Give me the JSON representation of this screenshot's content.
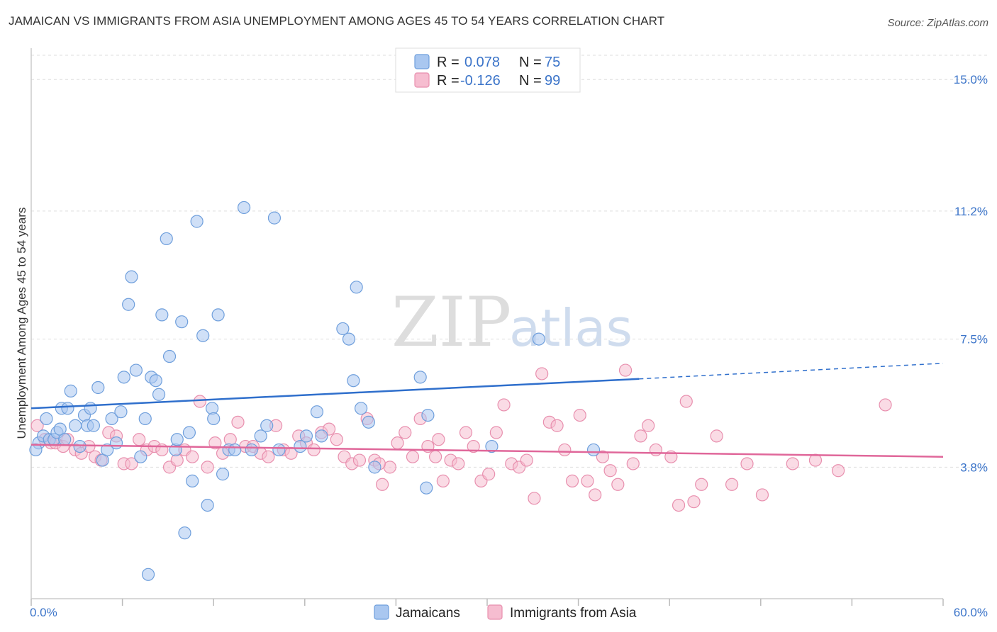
{
  "title": "JAMAICAN VS IMMIGRANTS FROM ASIA UNEMPLOYMENT AMONG AGES 45 TO 54 YEARS CORRELATION CHART",
  "source": "Source: ZipAtlas.com",
  "watermark": {
    "zip": "ZIP",
    "atlas": "atlas"
  },
  "legend": {
    "r_label": "R =",
    "n_label": "N =",
    "rows": [
      {
        "r": "0.078",
        "n": "75"
      },
      {
        "r": "-0.126",
        "n": "99"
      }
    ]
  },
  "colors": {
    "jamaicans_fill": "#a9c7f0",
    "jamaicans_stroke": "#6f9fdc",
    "jamaicans_line": "#2f6fcc",
    "asia_fill": "#f6bdd0",
    "asia_stroke": "#e88fae",
    "asia_line": "#e0679a",
    "tick_text": "#3b74c9",
    "grid": "#dddddd"
  },
  "chart_data": {
    "type": "scatter",
    "title": "JAMAICAN VS IMMIGRANTS FROM ASIA UNEMPLOYMENT AMONG AGES 45 TO 54 YEARS CORRELATION CHART",
    "xlabel": "",
    "ylabel": "Unemployment Among Ages 45 to 54 years",
    "xlim": [
      0,
      60
    ],
    "ylim": [
      0,
      15.7
    ],
    "x_tick_labels": [
      "0.0%",
      "60.0%"
    ],
    "y_ticks": [
      3.8,
      7.5,
      11.2,
      15.0
    ],
    "y_tick_labels": [
      "3.8%",
      "7.5%",
      "11.2%",
      "15.0%"
    ],
    "grid": true,
    "legend_position": "top-center",
    "series": [
      {
        "name": "Jamaicans",
        "r": 0.078,
        "n": 75,
        "trend": {
          "x0": 0,
          "y0": 5.5,
          "x1": 40,
          "y1": 6.35,
          "dashed_to": {
            "x": 60,
            "y": 6.8
          }
        },
        "points": [
          [
            0.5,
            4.5
          ],
          [
            0.8,
            4.7
          ],
          [
            1.0,
            5.2
          ],
          [
            1.2,
            4.6
          ],
          [
            1.5,
            4.6
          ],
          [
            1.7,
            4.8
          ],
          [
            1.9,
            4.9
          ],
          [
            2.0,
            5.5
          ],
          [
            2.2,
            4.6
          ],
          [
            2.4,
            5.5
          ],
          [
            2.6,
            6.0
          ],
          [
            2.9,
            5.0
          ],
          [
            3.2,
            4.4
          ],
          [
            3.5,
            5.3
          ],
          [
            3.7,
            5.0
          ],
          [
            3.9,
            5.5
          ],
          [
            4.1,
            5.0
          ],
          [
            4.4,
            6.1
          ],
          [
            4.7,
            4.0
          ],
          [
            5.0,
            4.3
          ],
          [
            5.3,
            5.2
          ],
          [
            5.6,
            4.5
          ],
          [
            5.9,
            5.4
          ],
          [
            6.1,
            6.4
          ],
          [
            6.4,
            8.5
          ],
          [
            6.6,
            9.3
          ],
          [
            6.9,
            6.6
          ],
          [
            7.2,
            4.1
          ],
          [
            7.5,
            5.2
          ],
          [
            7.9,
            6.4
          ],
          [
            8.2,
            6.3
          ],
          [
            8.4,
            5.9
          ],
          [
            8.6,
            8.2
          ],
          [
            8.9,
            10.4
          ],
          [
            9.1,
            7.0
          ],
          [
            9.5,
            4.3
          ],
          [
            9.9,
            8.0
          ],
          [
            10.1,
            1.9
          ],
          [
            10.4,
            4.8
          ],
          [
            10.6,
            3.4
          ],
          [
            10.9,
            10.9
          ],
          [
            11.3,
            7.6
          ],
          [
            11.6,
            2.7
          ],
          [
            11.9,
            5.5
          ],
          [
            12.0,
            5.2
          ],
          [
            12.3,
            8.2
          ],
          [
            12.6,
            3.6
          ],
          [
            13.0,
            4.3
          ],
          [
            13.4,
            4.3
          ],
          [
            14.0,
            11.3
          ],
          [
            14.5,
            4.3
          ],
          [
            15.1,
            4.7
          ],
          [
            15.5,
            5.0
          ],
          [
            16.0,
            11.0
          ],
          [
            16.3,
            4.3
          ],
          [
            17.7,
            4.4
          ],
          [
            18.1,
            4.7
          ],
          [
            18.8,
            5.4
          ],
          [
            19.1,
            4.7
          ],
          [
            20.5,
            7.8
          ],
          [
            20.9,
            7.5
          ],
          [
            21.2,
            6.3
          ],
          [
            21.4,
            9.0
          ],
          [
            21.7,
            5.5
          ],
          [
            22.2,
            5.1
          ],
          [
            22.6,
            3.8
          ],
          [
            25.6,
            6.4
          ],
          [
            26.0,
            3.2
          ],
          [
            26.1,
            5.3
          ],
          [
            30.3,
            4.4
          ],
          [
            33.4,
            7.5
          ],
          [
            37.0,
            4.3
          ],
          [
            7.7,
            0.7
          ],
          [
            0.3,
            4.3
          ],
          [
            9.6,
            4.6
          ]
        ]
      },
      {
        "name": "Immigrants from Asia",
        "r": -0.126,
        "n": 99,
        "trend": {
          "x0": 0,
          "y0": 4.45,
          "x1": 60,
          "y1": 4.1
        },
        "points": [
          [
            0.4,
            5.0
          ],
          [
            0.9,
            4.6
          ],
          [
            1.3,
            4.5
          ],
          [
            1.6,
            4.5
          ],
          [
            2.1,
            4.4
          ],
          [
            2.4,
            4.6
          ],
          [
            2.9,
            4.3
          ],
          [
            3.3,
            4.2
          ],
          [
            3.8,
            4.4
          ],
          [
            4.2,
            4.1
          ],
          [
            4.6,
            4.0
          ],
          [
            5.1,
            4.8
          ],
          [
            5.6,
            4.7
          ],
          [
            6.1,
            3.9
          ],
          [
            6.6,
            3.9
          ],
          [
            7.1,
            4.6
          ],
          [
            7.6,
            4.3
          ],
          [
            8.1,
            4.4
          ],
          [
            8.6,
            4.3
          ],
          [
            9.1,
            3.8
          ],
          [
            9.6,
            4.0
          ],
          [
            10.1,
            4.3
          ],
          [
            10.6,
            4.1
          ],
          [
            11.1,
            5.7
          ],
          [
            11.6,
            3.8
          ],
          [
            12.1,
            4.5
          ],
          [
            12.6,
            4.2
          ],
          [
            13.1,
            4.6
          ],
          [
            13.6,
            5.1
          ],
          [
            14.1,
            4.4
          ],
          [
            14.6,
            4.4
          ],
          [
            15.1,
            4.2
          ],
          [
            15.6,
            4.1
          ],
          [
            16.1,
            5.0
          ],
          [
            16.6,
            4.3
          ],
          [
            17.1,
            4.2
          ],
          [
            17.6,
            4.7
          ],
          [
            18.1,
            4.5
          ],
          [
            18.6,
            4.3
          ],
          [
            19.1,
            4.8
          ],
          [
            19.6,
            4.9
          ],
          [
            20.1,
            4.6
          ],
          [
            20.6,
            4.1
          ],
          [
            21.1,
            3.9
          ],
          [
            21.6,
            4.0
          ],
          [
            22.1,
            5.2
          ],
          [
            22.6,
            4.0
          ],
          [
            23.1,
            3.3
          ],
          [
            23.6,
            3.8
          ],
          [
            24.1,
            4.5
          ],
          [
            24.6,
            4.8
          ],
          [
            25.1,
            4.1
          ],
          [
            25.6,
            5.2
          ],
          [
            26.1,
            4.4
          ],
          [
            26.6,
            4.1
          ],
          [
            27.1,
            3.4
          ],
          [
            27.6,
            4.0
          ],
          [
            28.1,
            3.9
          ],
          [
            28.6,
            4.8
          ],
          [
            29.1,
            4.4
          ],
          [
            29.6,
            3.4
          ],
          [
            30.1,
            3.6
          ],
          [
            30.6,
            4.8
          ],
          [
            31.1,
            5.6
          ],
          [
            31.6,
            3.9
          ],
          [
            32.1,
            3.8
          ],
          [
            32.6,
            4.0
          ],
          [
            33.1,
            2.9
          ],
          [
            33.6,
            6.5
          ],
          [
            34.1,
            5.1
          ],
          [
            34.6,
            5.0
          ],
          [
            35.1,
            4.3
          ],
          [
            35.6,
            3.4
          ],
          [
            36.1,
            5.3
          ],
          [
            36.6,
            3.4
          ],
          [
            37.1,
            3.0
          ],
          [
            37.6,
            4.1
          ],
          [
            38.1,
            3.7
          ],
          [
            38.6,
            3.3
          ],
          [
            39.1,
            6.6
          ],
          [
            39.6,
            3.9
          ],
          [
            40.1,
            4.7
          ],
          [
            40.6,
            5.0
          ],
          [
            41.1,
            4.3
          ],
          [
            42.1,
            4.1
          ],
          [
            42.6,
            2.7
          ],
          [
            43.1,
            5.7
          ],
          [
            43.6,
            2.8
          ],
          [
            44.1,
            3.3
          ],
          [
            45.1,
            4.7
          ],
          [
            46.1,
            3.3
          ],
          [
            47.1,
            3.9
          ],
          [
            48.1,
            3.0
          ],
          [
            50.1,
            3.9
          ],
          [
            51.6,
            4.0
          ],
          [
            53.1,
            3.7
          ],
          [
            56.2,
            5.6
          ],
          [
            26.8,
            4.6
          ],
          [
            22.9,
            3.9
          ]
        ]
      }
    ]
  },
  "bottom_legend": [
    "Jamaicans",
    "Immigrants from Asia"
  ]
}
